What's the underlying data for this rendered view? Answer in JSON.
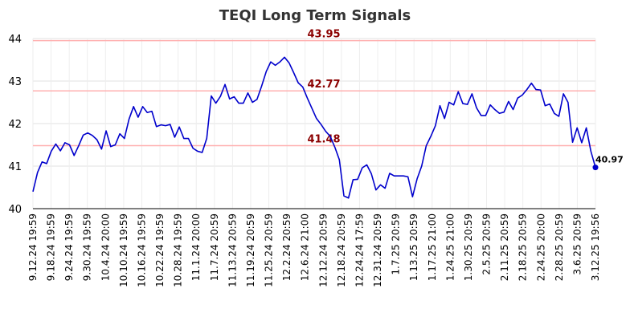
{
  "chart_data": {
    "type": "line",
    "title": "TEQI Long Term Signals",
    "ylim": [
      40,
      44
    ],
    "yticks": [
      40,
      41,
      42,
      43,
      44
    ],
    "grid": true,
    "x_tick_labels": [
      "9.12.24 19:59",
      "9.18.24 19:59",
      "9.24.24 19:59",
      "9.30.24 19:59",
      "10.4.24 20:00",
      "10.10.24 19:59",
      "10.16.24 19:59",
      "10.22.24 19:59",
      "10.28.24 19:59",
      "11.1.24 20:00",
      "11.7.24 20:59",
      "11.13.24 20:59",
      "11.19.24 20:59",
      "11.25.24 20:59",
      "12.2.24 20:59",
      "12.6.24 21:00",
      "12.12.24 20:59",
      "12.18.24 20:59",
      "12.24.24 17:59",
      "12.31.24 20:59",
      "1.7.25 20:59",
      "1.13.25 20:59",
      "1.17.25 21:00",
      "1.24.25 21:00",
      "1.30.25 20:59",
      "2.5.25 20:59",
      "2.11.25 20:59",
      "2.18.25 20:59",
      "2.24.25 20:00",
      "2.28.25 20:59",
      "3.6.25 20:59",
      "3.12.25 19:56"
    ],
    "signal_lines": [
      {
        "value": 43.95,
        "label": "43.95"
      },
      {
        "value": 42.77,
        "label": "42.77"
      },
      {
        "value": 41.48,
        "label": "41.48"
      }
    ],
    "last_value": {
      "value": 40.97,
      "label": "40.97"
    },
    "series": [
      {
        "color": "#0000cc",
        "values": [
          40.4,
          40.85,
          41.1,
          41.06,
          41.35,
          41.52,
          41.36,
          41.55,
          41.5,
          41.25,
          41.48,
          41.73,
          41.78,
          41.72,
          41.62,
          41.4,
          41.83,
          41.46,
          41.5,
          41.76,
          41.65,
          42.1,
          42.4,
          42.15,
          42.4,
          42.26,
          42.29,
          41.93,
          41.97,
          41.95,
          41.98,
          41.68,
          41.92,
          41.65,
          41.65,
          41.42,
          41.35,
          41.32,
          41.65,
          42.65,
          42.48,
          42.64,
          42.92,
          42.58,
          42.63,
          42.48,
          42.48,
          42.72,
          42.5,
          42.57,
          42.88,
          43.22,
          43.45,
          43.37,
          43.45,
          43.56,
          43.43,
          43.2,
          42.96,
          42.86,
          42.6,
          42.36,
          42.12,
          41.98,
          41.82,
          41.7,
          41.45,
          41.15,
          40.3,
          40.25,
          40.68,
          40.69,
          40.96,
          41.03,
          40.82,
          40.44,
          40.56,
          40.48,
          40.83,
          40.77,
          40.77,
          40.77,
          40.75,
          40.28,
          40.7,
          41.0,
          41.48,
          41.7,
          41.95,
          42.42,
          42.12,
          42.5,
          42.44,
          42.75,
          42.47,
          42.45,
          42.7,
          42.37,
          42.19,
          42.19,
          42.44,
          42.33,
          42.24,
          42.27,
          42.52,
          42.33,
          42.6,
          42.67,
          42.8,
          42.95,
          42.8,
          42.79,
          42.42,
          42.46,
          42.24,
          42.17,
          42.7,
          42.5,
          41.56,
          41.9,
          41.55,
          41.9,
          41.35,
          40.97
        ]
      }
    ]
  }
}
